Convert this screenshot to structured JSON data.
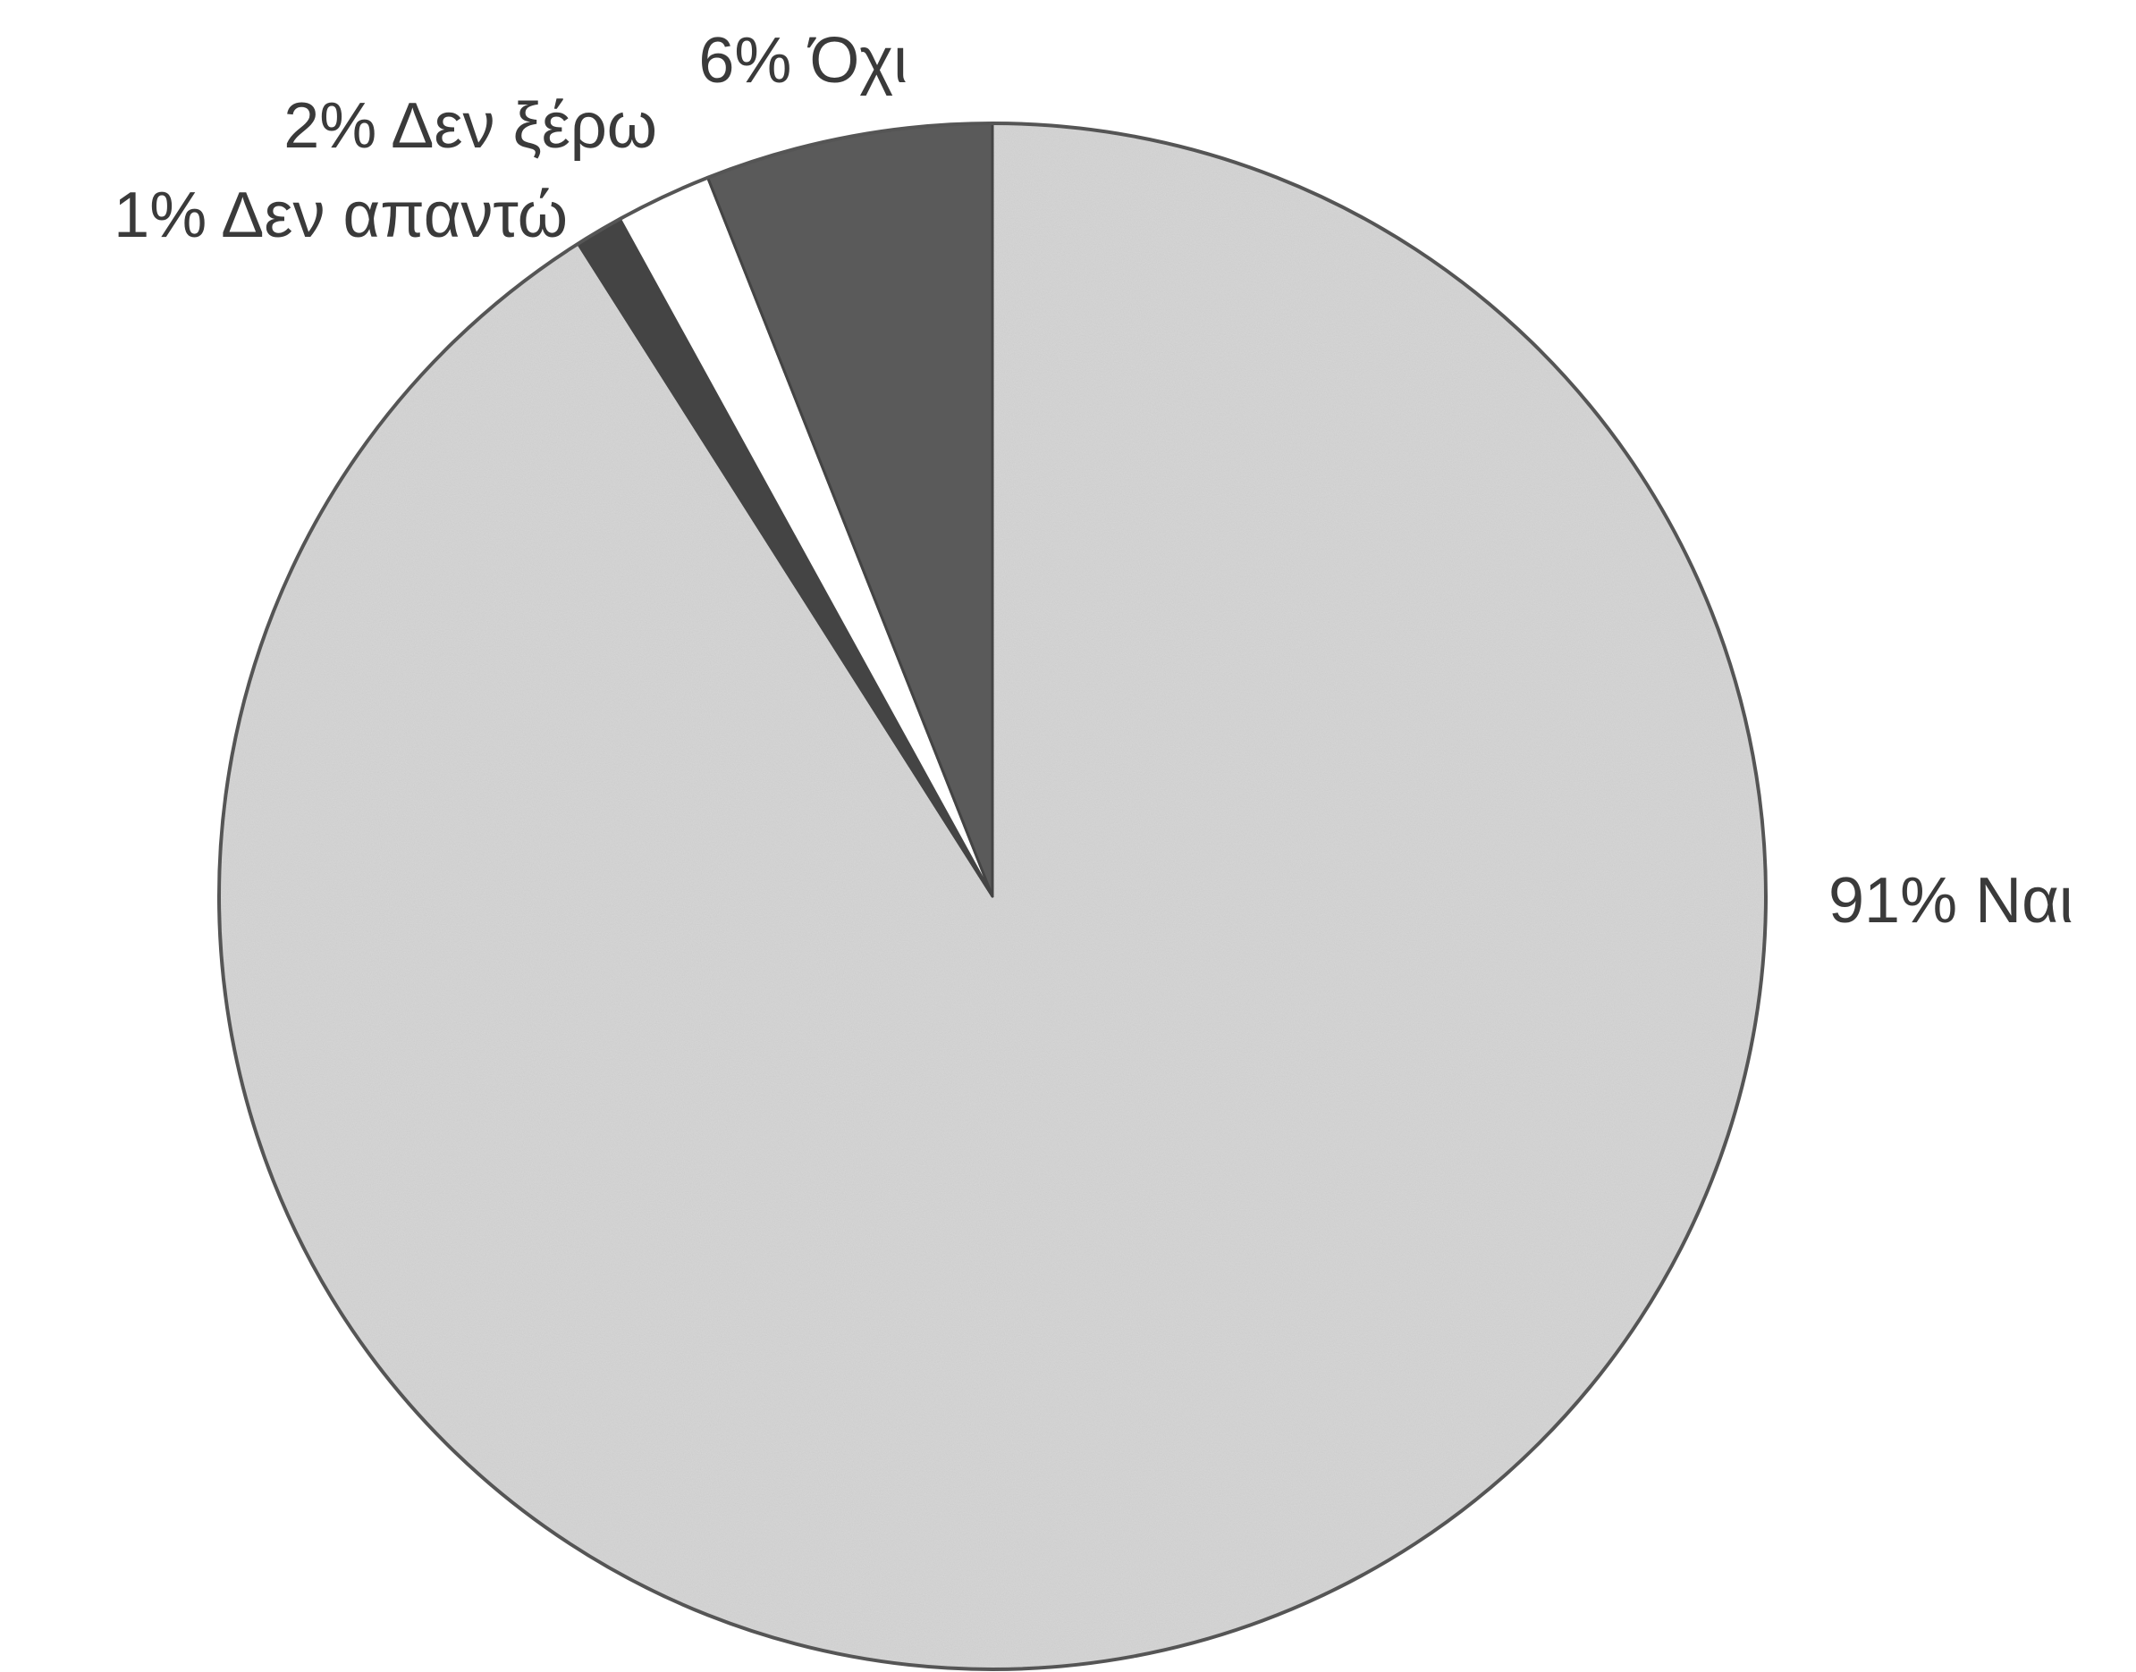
{
  "chart_data": {
    "type": "pie",
    "title": "",
    "start": "top",
    "direction": "clockwise",
    "slices": [
      {
        "label": "91% Ναι",
        "category": "Ναι",
        "value": 91,
        "color": "#d6d6d6",
        "pattern": "speckled"
      },
      {
        "label": "1% Δεν απαντώ",
        "category": "Δεν απαντώ",
        "value": 1,
        "color": "#444444"
      },
      {
        "label": "2% Δεν ξέρω",
        "category": "Δεν ξέρω",
        "value": 2,
        "color": "#ffffff"
      },
      {
        "label": "6% Όχι",
        "category": "Όχι",
        "value": 6,
        "color": "#5a5a5a"
      }
    ]
  }
}
